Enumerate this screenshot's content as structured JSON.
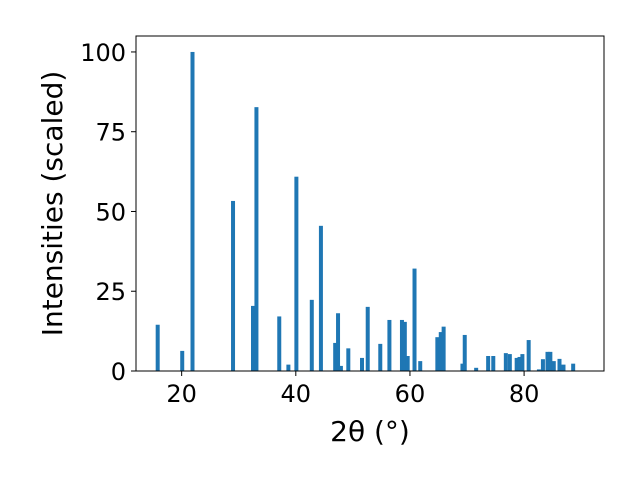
{
  "chart_data": {
    "type": "bar",
    "title": "",
    "xlabel": "2θ (°)",
    "ylabel": "Intensities (scaled)",
    "xlim": [
      12,
      94
    ],
    "ylim": [
      0,
      105
    ],
    "x_ticks": [
      20,
      40,
      60,
      80
    ],
    "y_ticks": [
      0,
      25,
      50,
      75,
      100
    ],
    "bar_color": "#1f77b4",
    "grid": false,
    "x": [
      15.8,
      20.1,
      21.9,
      29.0,
      32.5,
      33.1,
      37.1,
      38.7,
      40.1,
      42.8,
      44.4,
      46.9,
      47.4,
      47.9,
      49.2,
      51.6,
      52.6,
      54.8,
      56.4,
      58.6,
      59.1,
      59.6,
      60.8,
      61.8,
      64.8,
      65.4,
      65.9,
      69.2,
      69.6,
      71.6,
      73.7,
      74.6,
      76.8,
      77.5,
      78.7,
      79.2,
      79.7,
      80.8,
      82.6,
      83.3,
      84.1,
      84.6,
      85.2,
      86.2,
      86.9,
      88.6
    ],
    "values": [
      14.5,
      6.3,
      100.0,
      53.3,
      20.4,
      82.7,
      17.1,
      2.0,
      60.9,
      22.3,
      45.5,
      8.8,
      18.1,
      1.6,
      7.1,
      4.1,
      20.1,
      8.5,
      16.0,
      16.0,
      15.4,
      4.7,
      32.1,
      3.1,
      10.6,
      12.2,
      13.9,
      2.3,
      11.3,
      1.0,
      4.7,
      4.7,
      5.6,
      5.3,
      4.1,
      4.4,
      5.3,
      9.7,
      0.5,
      3.7,
      6.0,
      6.0,
      3.1,
      3.8,
      2.0,
      2.3
    ],
    "bar_width": 0.7
  }
}
